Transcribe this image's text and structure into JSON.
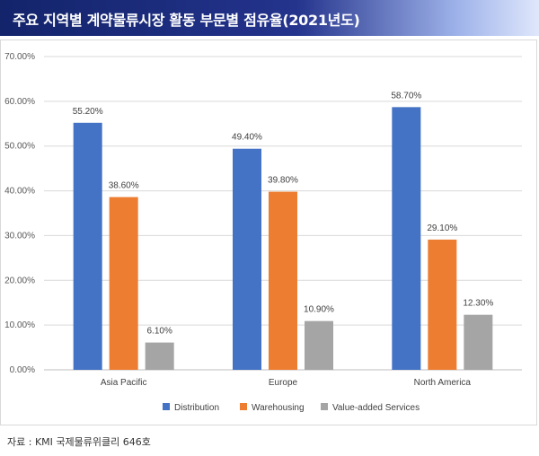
{
  "header": {
    "title": "주요 지역별 계약물류시장 활동 부문별 점유율(2021년도)"
  },
  "source": "자료 : KMI 국제물류위클리 646호",
  "chart_data": {
    "type": "bar",
    "categories": [
      "Asia Pacific",
      "Europe",
      "North America"
    ],
    "series": [
      {
        "name": "Distribution",
        "values": [
          55.2,
          49.4,
          58.7
        ],
        "labels": [
          "55.20%",
          "49.40%",
          "58.70%"
        ],
        "color": "#4472c4"
      },
      {
        "name": "Warehousing",
        "values": [
          38.6,
          39.8,
          29.1
        ],
        "labels": [
          "38.60%",
          "39.80%",
          "29.10%"
        ],
        "color": "#ed7d31"
      },
      {
        "name": "Value-added Services",
        "values": [
          6.1,
          10.9,
          12.3
        ],
        "labels": [
          "6.10%",
          "10.90%",
          "12.30%"
        ],
        "color": "#a5a5a5"
      }
    ],
    "yticks": [
      "0.00%",
      "10.00%",
      "20.00%",
      "30.00%",
      "40.00%",
      "50.00%",
      "60.00%",
      "70.00%"
    ],
    "ylim": [
      0,
      70
    ],
    "grid": true,
    "legend": "bottom"
  }
}
